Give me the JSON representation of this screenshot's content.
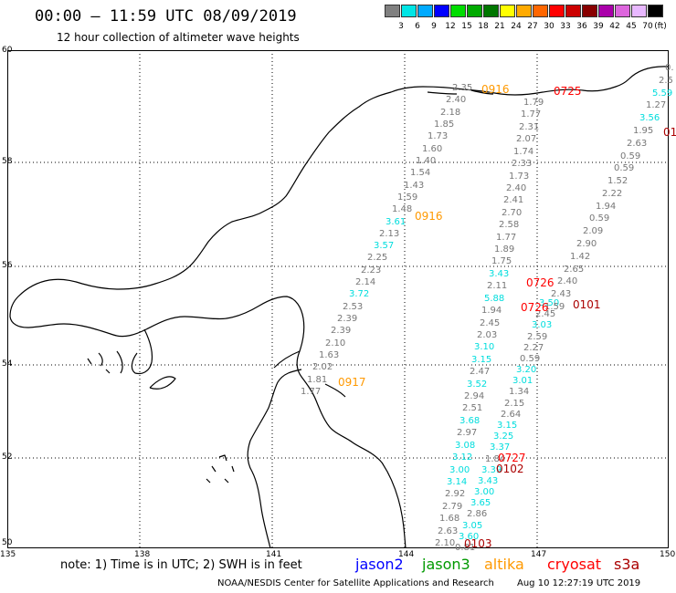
{
  "header": {
    "title": "00:00 – 11:59 UTC 08/09/2019",
    "subtitle": "12 hour collection of altimeter wave heights"
  },
  "colorbar": {
    "unit_label": "(ft)",
    "colors": [
      "#808080",
      "#00e5e5",
      "#00aaff",
      "#0000ff",
      "#00dd00",
      "#00aa00",
      "#007700",
      "#ffff00",
      "#ffaa00",
      "#ff6600",
      "#ff0000",
      "#cc0000",
      "#880000",
      "#aa00aa",
      "#dd66dd",
      "#e8b8ff",
      "#000000"
    ],
    "labels": [
      "3",
      "6",
      "9",
      "12",
      "15",
      "18",
      "21",
      "24",
      "27",
      "30",
      "33",
      "36",
      "39",
      "42",
      "45",
      "70"
    ]
  },
  "axes": {
    "lat_labels": [
      "60",
      "58",
      "56",
      "54",
      "52",
      "50"
    ],
    "lon_labels": [
      "135",
      "138",
      "141",
      "144",
      "147",
      "150"
    ]
  },
  "tracks": {
    "track_a_values": [
      "2.35",
      "2.40",
      "2.18",
      "1.85",
      "1.73",
      "1.60",
      "1.40",
      "1.54",
      "1.43",
      "1.59",
      "1.48",
      "3.61",
      "2.13",
      "3.57",
      "2.25",
      "2.23",
      "2.14",
      "3.72",
      "2.53",
      "2.39",
      "2.39",
      "2.10",
      "1.63",
      "2.02",
      "1.81",
      "1.77"
    ],
    "track_b_values": [
      "1.79",
      "1.77",
      "2.31",
      "2.07",
      "1.74",
      "2.33",
      "1.73",
      "2.40",
      "2.41",
      "2.70",
      "2.58",
      "1.77",
      "1.89",
      "1.75",
      "3.43",
      "2.11",
      "5.88",
      "1.94",
      "2.45",
      "2.03",
      "3.10",
      "3.15",
      "2.47",
      "3.52",
      "2.94",
      "2.51",
      "3.68",
      "2.97",
      "3.08",
      "3.12",
      "3.00",
      "3.14",
      "2.92",
      "2.79",
      "1.68",
      "2.63",
      "2.10"
    ],
    "track_c_values": [
      "3.50",
      "2.45",
      "3.03",
      "2.59",
      "2.27",
      "0.59",
      "3.20",
      "3.01",
      "1.34",
      "2.15",
      "2.64",
      "3.15",
      "3.25",
      "3.37",
      "1.84",
      "3.39",
      "3.43",
      "3.00",
      "3.65",
      "2.86",
      "3.05",
      "3.60",
      "0.81"
    ],
    "track_d_values": [
      "0.",
      "2.5",
      "5.59",
      "1.27",
      "3.56",
      "1.95",
      "2.63",
      "0.59",
      "0.59",
      "1.52",
      "2.22",
      "1.94",
      "0.59",
      "2.09",
      "2.90",
      "1.42",
      "2.65",
      "2.40",
      "2.43",
      "1.59"
    ],
    "times": [
      {
        "label": "0916",
        "color": "#ff9900"
      },
      {
        "label": "0725",
        "color": "#ff0000"
      },
      {
        "label": "01",
        "color": "#aa0000"
      },
      {
        "label": "0916",
        "color": "#ff9900"
      },
      {
        "label": "0726",
        "color": "#ff0000"
      },
      {
        "label": "0726",
        "color": "#ff0000"
      },
      {
        "label": "0101",
        "color": "#aa0000"
      },
      {
        "label": "0917",
        "color": "#ff9900"
      },
      {
        "label": "0727",
        "color": "#ff0000"
      },
      {
        "label": "0102",
        "color": "#aa0000"
      },
      {
        "label": "0103",
        "color": "#aa0000"
      }
    ]
  },
  "footer": {
    "note": "note:  1) Time is in UTC;  2) SWH is in feet",
    "legend": [
      {
        "label": "jason2",
        "color": "#0000ff"
      },
      {
        "label": "jason3",
        "color": "#009900"
      },
      {
        "label": "altika",
        "color": "#ff9900"
      },
      {
        "label": "cryosat",
        "color": "#ff0000"
      },
      {
        "label": "s3a",
        "color": "#aa0000"
      }
    ],
    "credit": "NOAA/NESDIS Center for Satellite Applications and Research",
    "timestamp": "Aug 10 12:27:19 UTC 2019"
  }
}
